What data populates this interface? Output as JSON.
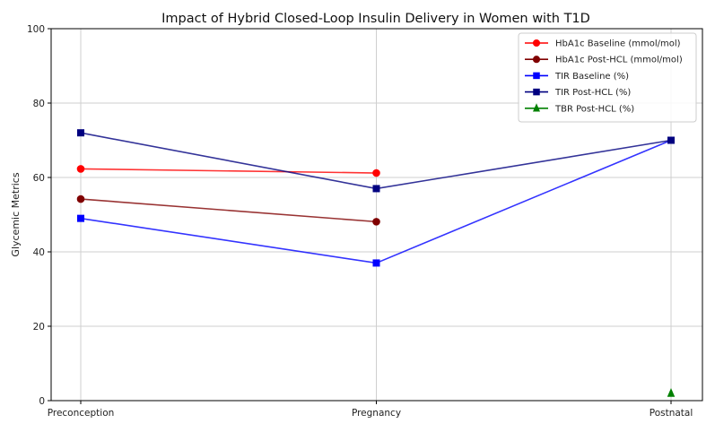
{
  "chart_data": {
    "type": "line",
    "title": "Impact of Hybrid Closed-Loop Insulin Delivery in Women with T1D",
    "xlabel": "",
    "ylabel": "Glycemic Metrics",
    "categories": [
      "Preconception",
      "Pregnancy",
      "Postnatal"
    ],
    "ylim": [
      0,
      100
    ],
    "yticks": [
      0,
      20,
      40,
      60,
      80,
      100
    ],
    "grid": true,
    "legend_position": "top-right",
    "series": [
      {
        "name": "HbA1c Baseline (mmol/mol)",
        "color": "#ff0000",
        "marker": "circle",
        "values": [
          62.3,
          61.2,
          null
        ]
      },
      {
        "name": "HbA1c Post-HCL (mmol/mol)",
        "color": "#800000",
        "marker": "circle",
        "values": [
          54.2,
          48.1,
          null
        ]
      },
      {
        "name": "TIR Baseline (%)",
        "color": "#0000ff",
        "marker": "square",
        "values": [
          49,
          37,
          70
        ]
      },
      {
        "name": "TIR Post-HCL (%)",
        "color": "#000080",
        "marker": "square",
        "values": [
          72,
          57,
          70
        ]
      },
      {
        "name": "TBR Post-HCL (%)",
        "color": "#008000",
        "marker": "triangle",
        "values": [
          null,
          null,
          2
        ]
      }
    ]
  }
}
